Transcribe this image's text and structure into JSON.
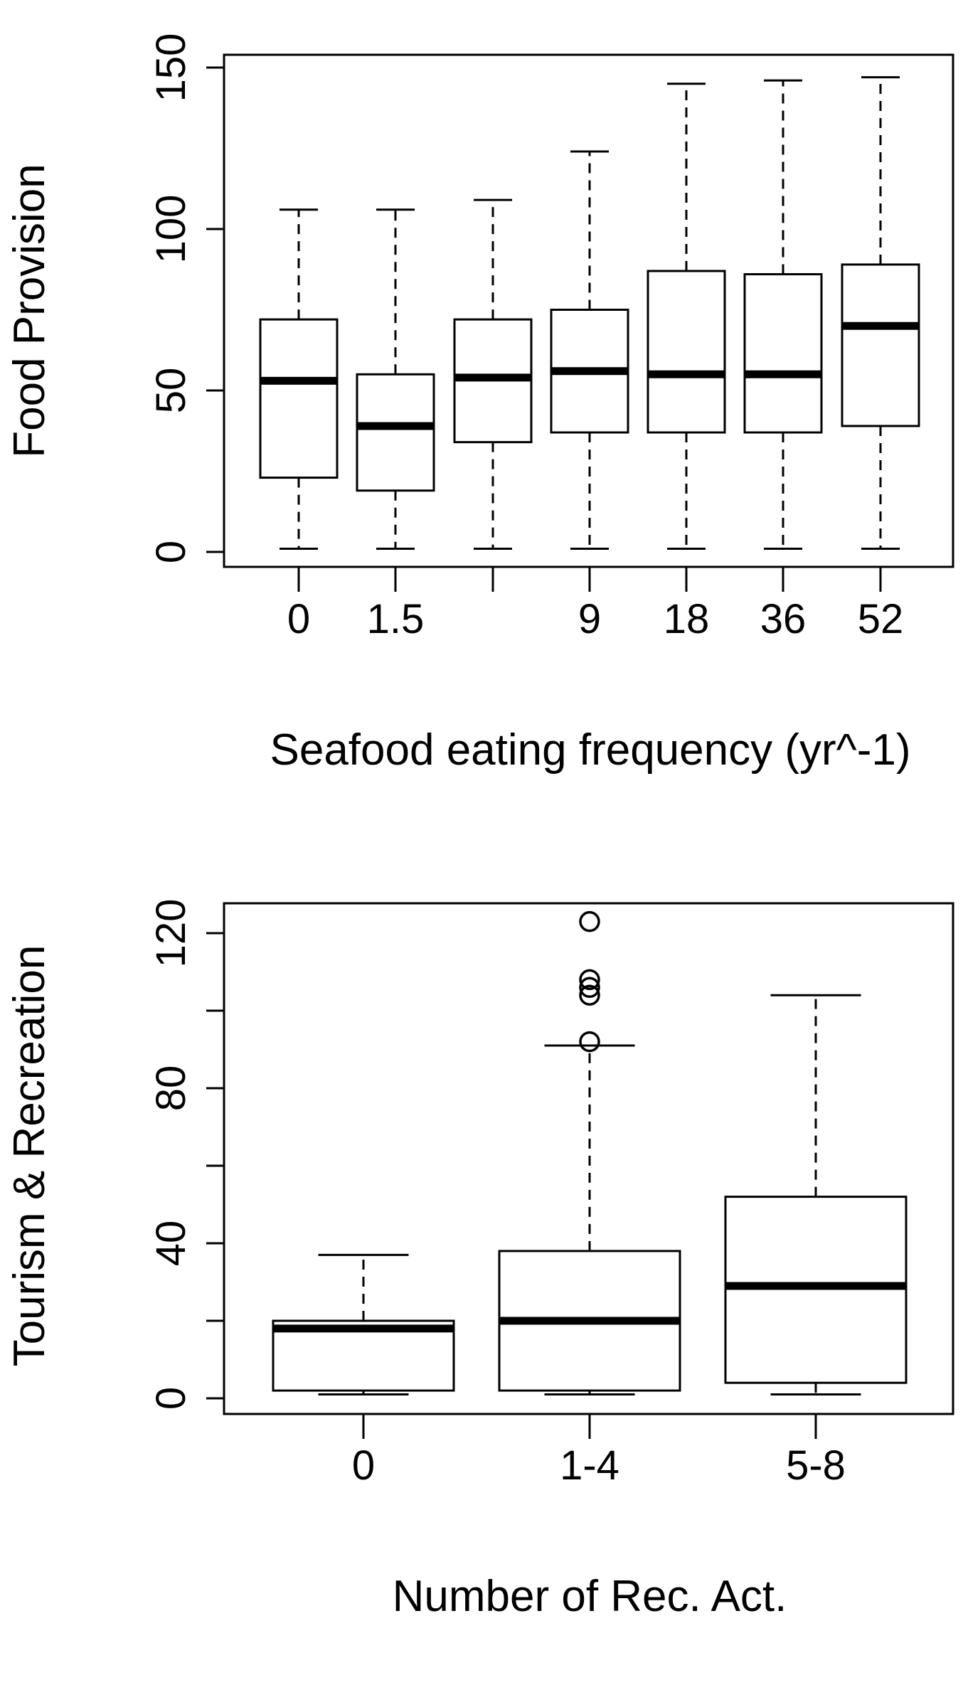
{
  "chart_data": [
    {
      "type": "boxplot",
      "xlabel": "Seafood eating frequency (yr^-1)",
      "ylabel": "Food Provision",
      "ylim": [
        0,
        150
      ],
      "yticks": [
        0,
        50,
        100,
        150
      ],
      "categories": [
        "0",
        "1.5",
        "",
        "9",
        "18",
        "36",
        "52"
      ],
      "boxes": [
        {
          "category": "0",
          "min": 1,
          "q1": 23,
          "median": 53,
          "q3": 72,
          "max": 106,
          "outliers": []
        },
        {
          "category": "1.5",
          "min": 1,
          "q1": 19,
          "median": 39,
          "q3": 55,
          "max": 106,
          "outliers": []
        },
        {
          "category": "",
          "min": 1,
          "q1": 34,
          "median": 54,
          "q3": 72,
          "max": 109,
          "outliers": []
        },
        {
          "category": "9",
          "min": 1,
          "q1": 37,
          "median": 56,
          "q3": 75,
          "max": 124,
          "outliers": []
        },
        {
          "category": "18",
          "min": 1,
          "q1": 37,
          "median": 55,
          "q3": 87,
          "max": 145,
          "outliers": []
        },
        {
          "category": "36",
          "min": 1,
          "q1": 37,
          "median": 55,
          "q3": 86,
          "max": 146,
          "outliers": []
        },
        {
          "category": "52",
          "min": 1,
          "q1": 39,
          "median": 70,
          "q3": 89,
          "max": 147,
          "outliers": []
        }
      ],
      "grid": false
    },
    {
      "type": "boxplot",
      "xlabel": "Number of Rec. Act.",
      "ylabel": "Tourism & Recreation",
      "ylim": [
        0,
        120
      ],
      "yticks": [
        0,
        20,
        40,
        60,
        80,
        100,
        120
      ],
      "ytick_labels": [
        "0",
        "",
        "40",
        "",
        "80",
        "",
        "120"
      ],
      "categories": [
        "0",
        "1-4",
        "5-8"
      ],
      "boxes": [
        {
          "category": "0",
          "min": 1,
          "q1": 2,
          "median": 18,
          "q3": 20,
          "max": 37,
          "outliers": []
        },
        {
          "category": "1-4",
          "min": 1,
          "q1": 2,
          "median": 20,
          "q3": 38,
          "max": 91,
          "outliers": [
            92,
            104,
            106,
            108,
            123
          ]
        },
        {
          "category": "5-8",
          "min": 1,
          "q1": 4,
          "median": 29,
          "q3": 52,
          "max": 104,
          "outliers": []
        }
      ],
      "grid": false
    }
  ]
}
